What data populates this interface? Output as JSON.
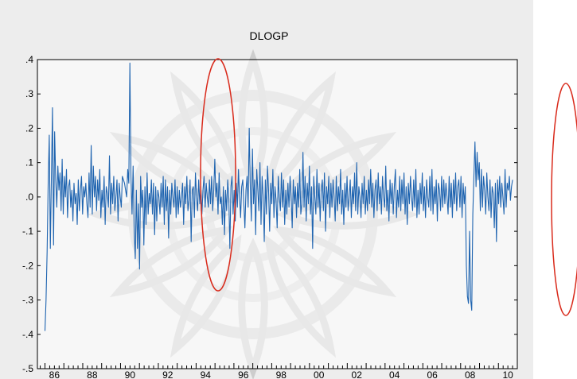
{
  "colors": {
    "background": "#ededed",
    "plot_area": "#ffffff",
    "series_line": "#1f64b0",
    "annotation_ellipse": "#d92b1c",
    "watermark": "#c8c8c8",
    "axis": "#000000"
  },
  "watermark": {
    "icon": "star-mandala-watermark-icon"
  },
  "chart_data": {
    "type": "line",
    "title": "DLOGP",
    "xlabel": "",
    "ylabel": "",
    "frequency": "monthly",
    "x_start": 1986.0,
    "x_end": 2010.75,
    "xlim": [
      1985.6,
      2011.0
    ],
    "ylim": [
      -0.5,
      0.4
    ],
    "x_tick_labels": [
      "86",
      "88",
      "90",
      "92",
      "94",
      "96",
      "98",
      "00",
      "02",
      "04",
      "06",
      "08",
      "10"
    ],
    "x_tick_years": [
      1986,
      1988,
      1990,
      1992,
      1994,
      1996,
      1998,
      2000,
      2002,
      2004,
      2006,
      2008,
      2010
    ],
    "y_ticks": [
      0.4,
      0.3,
      0.2,
      0.1,
      0.0,
      -0.1,
      -0.2,
      -0.3,
      -0.4,
      -0.5
    ],
    "y_tick_labels": [
      ".4",
      ".3",
      ".2",
      ".1",
      ".0",
      "-.1",
      "-.2",
      "-.3",
      "-.4",
      "-.5"
    ],
    "grid": false,
    "legend": "none",
    "series": [
      {
        "values": [
          -0.39,
          -0.3,
          -0.16,
          0.04,
          0.18,
          -0.15,
          0.06,
          0.26,
          -0.14,
          0.19,
          0.05,
          -0.03,
          0.09,
          0.02,
          0.07,
          -0.04,
          0.11,
          -0.05,
          0.06,
          0.0,
          0.08,
          -0.06,
          0.03,
          0.05,
          -0.03,
          0.02,
          -0.07,
          0.04,
          -0.02,
          0.01,
          -0.08,
          0.05,
          -0.04,
          0.02,
          0.06,
          -0.05,
          0.03,
          0.0,
          0.04,
          -0.02,
          -0.06,
          0.07,
          -0.03,
          0.15,
          -0.05,
          0.09,
          0.0,
          0.06,
          -0.04,
          0.05,
          -0.01,
          0.08,
          -0.06,
          0.02,
          -0.03,
          0.06,
          -0.08,
          0.03,
          0.01,
          -0.03,
          0.12,
          -0.05,
          0.04,
          -0.02,
          0.06,
          -0.04,
          0.0,
          0.05,
          -0.07,
          0.04,
          0.0,
          -0.03,
          0.06,
          0.05,
          0.04,
          0.02,
          0.0,
          0.08,
          0.04,
          0.39,
          0.06,
          -0.05,
          0.09,
          -0.1,
          -0.18,
          0.02,
          -0.15,
          -0.02,
          -0.21,
          0.06,
          -0.03,
          0.02,
          -0.14,
          0.03,
          -0.08,
          0.07,
          -0.05,
          0.01,
          -0.02,
          0.05,
          -0.05,
          0.04,
          -0.11,
          0.03,
          -0.07,
          0.02,
          0.0,
          -0.05,
          0.04,
          -0.03,
          0.06,
          -0.08,
          0.05,
          -0.04,
          0.03,
          -0.12,
          0.02,
          -0.05,
          0.04,
          0.0,
          -0.03,
          0.05,
          -0.06,
          0.03,
          -0.05,
          0.02,
          -0.03,
          0.0,
          0.04,
          -0.08,
          0.03,
          -0.02,
          0.06,
          -0.04,
          -0.01,
          0.05,
          -0.13,
          0.02,
          0.03,
          -0.06,
          0.07,
          0.0,
          -0.04,
          0.05,
          -0.02,
          0.03,
          -0.05,
          0.02,
          0.06,
          -0.03,
          0.04,
          0.0,
          -0.03,
          0.05,
          -0.02,
          0.06,
          -0.04,
          0.02,
          0.11,
          0.0,
          0.04,
          -0.05,
          0.07,
          -0.02,
          0.0,
          -0.08,
          0.03,
          -0.11,
          0.02,
          -0.04,
          0.05,
          0.0,
          -0.15,
          0.03,
          0.06,
          -0.05,
          0.02,
          -0.07,
          0.04,
          -0.03,
          0.08,
          0.0,
          -0.06,
          0.03,
          0.05,
          -0.02,
          -0.09,
          0.02,
          0.06,
          -0.03,
          0.2,
          0.03,
          -0.07,
          0.14,
          -0.02,
          0.05,
          -0.11,
          0.08,
          0.02,
          -0.04,
          0.1,
          -0.08,
          0.06,
          0.0,
          -0.13,
          0.05,
          -0.05,
          0.09,
          0.02,
          -0.1,
          0.04,
          -0.02,
          0.08,
          -0.06,
          0.03,
          -0.01,
          -0.09,
          0.06,
          0.0,
          -0.04,
          0.07,
          -0.03,
          0.05,
          -0.08,
          0.02,
          -0.05,
          0.04,
          -0.03,
          0.06,
          0.0,
          -0.09,
          0.05,
          -0.02,
          0.03,
          -0.06,
          0.04,
          -0.03,
          0.08,
          -0.05,
          -0.02,
          0.13,
          -0.03,
          0.06,
          -0.07,
          0.04,
          -0.02,
          0.09,
          -0.05,
          0.03,
          -0.15,
          0.06,
          0.0,
          -0.05,
          0.08,
          -0.03,
          0.04,
          -0.07,
          0.02,
          0.05,
          -0.04,
          0.07,
          -0.1,
          0.03,
          -0.02,
          0.06,
          -0.06,
          0.04,
          -0.03,
          0.05,
          0.0,
          -0.07,
          0.06,
          -0.04,
          0.03,
          -0.02,
          0.08,
          -0.05,
          0.02,
          -0.08,
          0.04,
          -0.03,
          0.06,
          -0.04,
          0.0,
          0.05,
          -0.06,
          0.03,
          -0.02,
          0.07,
          -0.04,
          0.1,
          -0.05,
          0.03,
          0.0,
          -0.06,
          0.04,
          -0.02,
          0.06,
          -0.05,
          0.02,
          -0.04,
          0.05,
          -0.02,
          0.08,
          -0.03,
          0.04,
          -0.06,
          0.02,
          0.05,
          -0.04,
          0.07,
          -0.02,
          0.03,
          -0.05,
          0.06,
          0.0,
          -0.03,
          0.09,
          -0.04,
          0.02,
          -0.07,
          0.05,
          -0.02,
          0.04,
          -0.05,
          0.03,
          0.08,
          -0.06,
          0.02,
          -0.03,
          0.06,
          -0.04,
          0.05,
          -0.02,
          0.07,
          -0.05,
          0.03,
          -0.08,
          0.04,
          -0.02,
          0.06,
          0.0,
          -0.04,
          0.05,
          -0.03,
          0.08,
          -0.06,
          0.02,
          -0.05,
          0.04,
          -0.02,
          0.07,
          -0.04,
          0.03,
          -0.06,
          0.05,
          0.0,
          -0.03,
          0.06,
          -0.04,
          0.08,
          -0.05,
          0.03,
          -0.02,
          0.05,
          -0.07,
          0.04,
          0.02,
          -0.04,
          0.06,
          -0.03,
          0.05,
          -0.02,
          0.04,
          0.0,
          -0.05,
          0.06,
          -0.03,
          0.04,
          -0.06,
          0.05,
          -0.02,
          0.07,
          -0.04,
          0.03,
          0.05,
          -0.03,
          0.06,
          -0.06,
          0.04,
          -0.02,
          0.03,
          -0.2,
          -0.29,
          -0.31,
          -0.1,
          -0.3,
          -0.33,
          -0.05,
          0.06,
          0.16,
          0.03,
          0.13,
          0.05,
          0.1,
          -0.04,
          0.08,
          -0.03,
          0.06,
          0.02,
          -0.05,
          0.07,
          0.0,
          -0.04,
          0.05,
          -0.06,
          0.03,
          0.01,
          -0.09,
          0.04,
          -0.13,
          0.05,
          -0.02,
          0.06,
          -0.03,
          0.04,
          0.0,
          -0.05,
          0.08,
          -0.03,
          0.04,
          0.02,
          0.06,
          -0.01,
          0.03,
          0.05
        ]
      }
    ]
  }
}
